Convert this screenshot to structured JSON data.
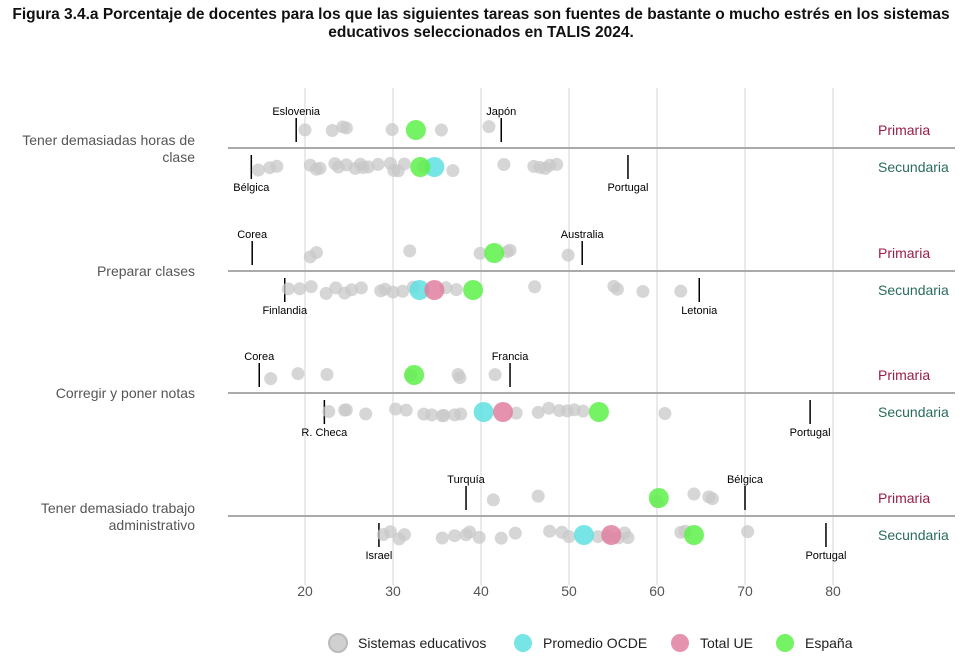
{
  "chart_data": {
    "type": "scatter",
    "title": "Figura 3.4.a Porcentaje de docentes para los que las siguientes tareas son fuentes de bastante o mucho estrés en los sistemas educativos seleccionados en TALIS 2024.",
    "xlim": [
      10,
      85
    ],
    "xticks": [
      20,
      30,
      40,
      50,
      60,
      70,
      80
    ],
    "grid": true,
    "legend_position": "bottom",
    "levels": [
      {
        "label": "Primaria",
        "color": "#9b1d45"
      },
      {
        "label": "Secundaria",
        "color": "#2a6b5e"
      }
    ],
    "legend": [
      {
        "key": "systems",
        "label": "Sistemas educativos",
        "color": "#c8c8c8"
      },
      {
        "key": "oecd",
        "label": "Promedio OCDE",
        "color": "#5fe0e0"
      },
      {
        "key": "eu",
        "label": "Total UE",
        "color": "#e07fa0"
      },
      {
        "key": "spain",
        "label": "España",
        "color": "#5ef04a"
      }
    ],
    "categories": [
      {
        "label": "Tener demasiadas horas de clase",
        "rows": [
          {
            "level": "Primaria",
            "systems": [
              20.0,
              23.1,
              24.3,
              24.7,
              29.9,
              35.5,
              40.9
            ],
            "spain": 32.6,
            "min": {
              "label": "Eslovenia",
              "value": 19.0
            },
            "max": {
              "label": "Japón",
              "value": 42.3
            }
          },
          {
            "level": "Secundaria",
            "systems": [
              14.7,
              16.0,
              16.8,
              20.6,
              21.3,
              21.7,
              23.4,
              23.8,
              24.7,
              25.7,
              26.3,
              26.6,
              27.2,
              28.3,
              29.7,
              30.1,
              30.6,
              31.3,
              33.5,
              36.8,
              42.6,
              46.0,
              46.7,
              47.3,
              47.8,
              48.6
            ],
            "oecd": 34.7,
            "spain": 33.1,
            "min": {
              "label": "Bélgica",
              "value": 13.9
            },
            "max": {
              "label": "Portugal",
              "value": 56.7
            }
          }
        ]
      },
      {
        "label": "Preparar clases",
        "rows": [
          {
            "level": "Primaria",
            "systems": [
              20.6,
              21.3,
              31.9,
              39.9,
              43.0,
              43.3,
              49.9
            ],
            "spain": 41.5,
            "min": {
              "label": "Corea",
              "value": 14.0
            },
            "max": {
              "label": "Australia",
              "value": 51.5
            }
          },
          {
            "level": "Secundaria",
            "systems": [
              18.1,
              19.4,
              20.7,
              22.4,
              23.5,
              24.5,
              25.3,
              26.4,
              28.6,
              29.1,
              30.0,
              31.1,
              32.3,
              36.0,
              37.2,
              46.1,
              55.1,
              55.5,
              58.4,
              62.7
            ],
            "oecd": 33.0,
            "eu": 34.7,
            "spain": 39.1,
            "min": {
              "label": "Finlandia",
              "value": 17.7
            },
            "max": {
              "label": "Letonia",
              "value": 64.8
            }
          }
        ]
      },
      {
        "label": "Corregir y poner notas",
        "rows": [
          {
            "level": "Primaria",
            "systems": [
              16.1,
              19.2,
              22.5,
              32.0,
              37.4,
              37.6,
              41.6
            ],
            "spain": 32.4,
            "min": {
              "label": "Corea",
              "value": 14.8
            },
            "max": {
              "label": "Francia",
              "value": 43.3
            }
          },
          {
            "level": "Secundaria",
            "systems": [
              22.7,
              24.5,
              24.7,
              26.9,
              30.3,
              31.5,
              33.5,
              34.4,
              35.6,
              35.8,
              37.0,
              37.7,
              44.0,
              46.5,
              47.7,
              48.9,
              49.8,
              50.6,
              51.6,
              60.9
            ],
            "oecd": 40.3,
            "eu": 42.5,
            "spain": 53.4,
            "min": {
              "label": "R. Checa",
              "value": 22.2
            },
            "max": {
              "label": "Portugal",
              "value": 77.4
            }
          }
        ]
      },
      {
        "label": "Tener demasiado trabajo administrativo",
        "rows": [
          {
            "level": "Primaria",
            "systems": [
              41.4,
              46.5,
              60.0,
              64.2,
              65.9,
              66.3
            ],
            "spain": 60.2,
            "min": {
              "label": "Turquía",
              "value": 38.3
            },
            "max": {
              "label": "Bélgica",
              "value": 70.0
            }
          },
          {
            "level": "Secundaria",
            "systems": [
              28.9,
              29.7,
              30.7,
              31.3,
              35.6,
              37.0,
              38.3,
              38.7,
              39.8,
              42.3,
              43.9,
              47.8,
              49.2,
              50.0,
              53.3,
              54.4,
              55.6,
              56.3,
              56.7,
              62.7,
              63.2,
              70.3
            ],
            "oecd": 51.7,
            "eu": 54.8,
            "spain": 64.2,
            "min": {
              "label": "Israel",
              "value": 28.4
            },
            "max": {
              "label": "Portugal",
              "value": 79.2
            }
          }
        ]
      }
    ]
  }
}
